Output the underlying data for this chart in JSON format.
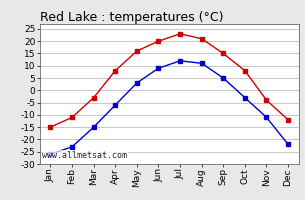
{
  "title": "Red Lake : temperatures (°C)",
  "months": [
    "Jan",
    "Feb",
    "Mar",
    "Apr",
    "May",
    "Jun",
    "Jul",
    "Aug",
    "Sep",
    "Oct",
    "Nov",
    "Dec"
  ],
  "red_line": [
    -15,
    -11,
    -3,
    8,
    16,
    20,
    23,
    21,
    15,
    8,
    -4,
    -12
  ],
  "blue_line": [
    -26,
    -23,
    -15,
    -6,
    3,
    9,
    12,
    11,
    5,
    -3,
    -11,
    -22
  ],
  "ylim": [
    -30,
    27
  ],
  "yticks": [
    -30,
    -25,
    -20,
    -15,
    -10,
    -5,
    0,
    5,
    10,
    15,
    20,
    25
  ],
  "red_color": "#cc0000",
  "blue_color": "#0000cc",
  "bg_color": "#e8e8e8",
  "plot_bg": "#ffffff",
  "grid_color": "#b0b0b0",
  "watermark": "www.allmetsat.com",
  "title_fontsize": 9,
  "tick_fontsize": 6.5,
  "watermark_fontsize": 6
}
